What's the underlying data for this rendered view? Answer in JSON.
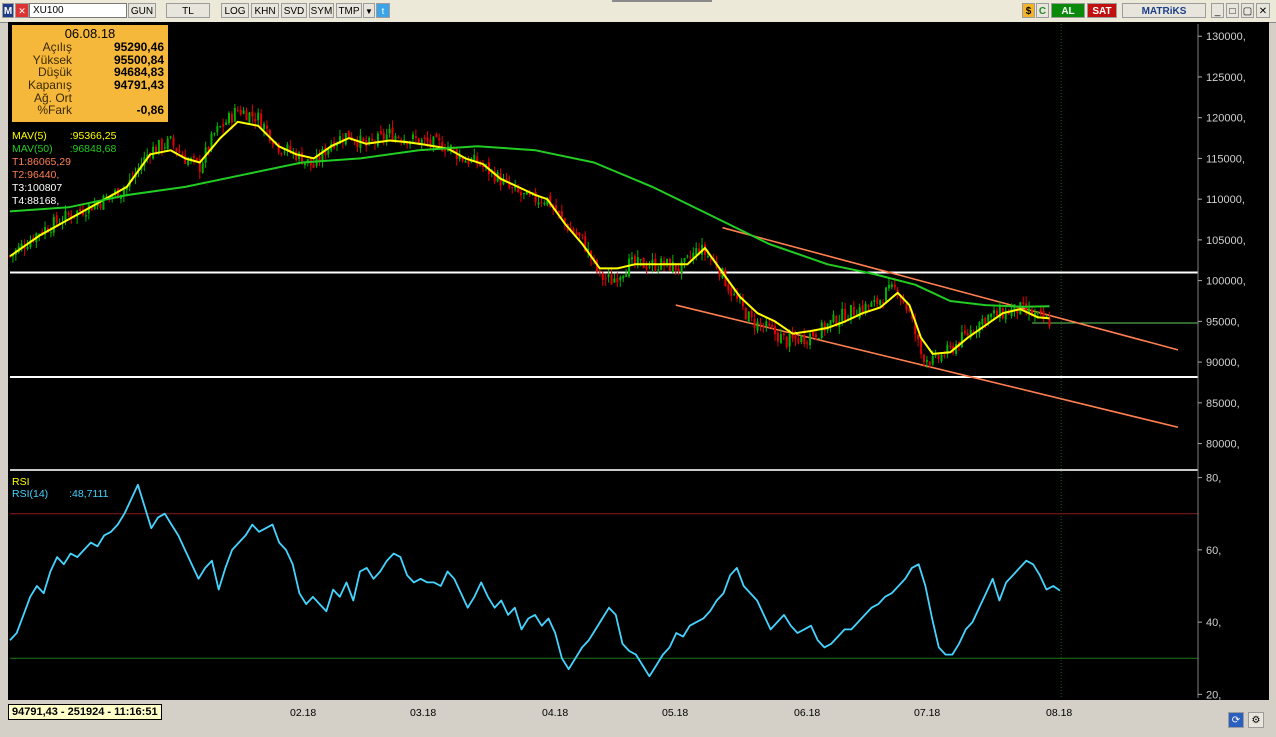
{
  "toolbar": {
    "symbol": "XU100",
    "buttons": [
      "GUN",
      "TL",
      "LOG",
      "KHN",
      "SVD",
      "SYM",
      "TMP"
    ],
    "al_label": "AL",
    "sat_label": "SAT",
    "brand": "MATRiKS"
  },
  "info_box": {
    "date": "06.08.18",
    "rows": [
      {
        "label": "Açılış",
        "value": "95290,46"
      },
      {
        "label": "Yüksek",
        "value": "95500,84"
      },
      {
        "label": "Düşük",
        "value": "94684,83"
      },
      {
        "label": "Kapanış",
        "value": "94791,43"
      },
      {
        "label": "Ağ. Ort",
        "value": ""
      },
      {
        "label": "%Fark",
        "value": "-0,86"
      }
    ]
  },
  "legend": {
    "mav5": "MAV(5)",
    "mav5_value": ":95366,25",
    "mav50": "MAV(50)",
    "mav50_value": ":96848,68",
    "t1": "T1:86065,29",
    "t2": "T2:96440,",
    "t3": "T3:100807",
    "t4": "T4:88168,"
  },
  "rsi_legend": {
    "title": "RSI",
    "label": "RSI(14)",
    "value": ":48,7111"
  },
  "status": {
    "text": "94791,43 - 251924 - 11:16:51"
  },
  "colors": {
    "up": "#00b300",
    "down": "#e00000",
    "mav5": "#ffff00",
    "mav50": "#22cc22",
    "rsi": "#44d4ff",
    "channel": "#ff7f50",
    "hline": "#ffffff",
    "infobox": "#f6b83a"
  },
  "chart_data": [
    {
      "type": "line",
      "title": "XU100",
      "x_labels": [
        "02.18",
        "03.18",
        "04.18",
        "05.18",
        "06.18",
        "07.18",
        "08.18"
      ],
      "y_ticks": [
        80000,
        85000,
        90000,
        95000,
        100000,
        105000,
        110000,
        115000,
        120000,
        125000,
        130000
      ],
      "y_tick_labels": [
        "80000,",
        "85000,",
        "90000,",
        "95000,",
        "100000,",
        "105000,",
        "110000,",
        "115000,",
        "120000,",
        "125000,",
        "130000,"
      ],
      "ylim": [
        77000,
        131500
      ],
      "price_path": [
        [
          0,
          103000
        ],
        [
          10,
          106000
        ],
        [
          20,
          108000
        ],
        [
          30,
          109500
        ],
        [
          40,
          111500
        ],
        [
          48,
          116000
        ],
        [
          55,
          117000
        ],
        [
          60,
          115000
        ],
        [
          65,
          114000
        ],
        [
          70,
          118000
        ],
        [
          78,
          121000
        ],
        [
          85,
          120000
        ],
        [
          92,
          116500
        ],
        [
          98,
          115500
        ],
        [
          104,
          114000
        ],
        [
          110,
          117000
        ],
        [
          116,
          118000
        ],
        [
          122,
          116500
        ],
        [
          130,
          118000
        ],
        [
          136,
          117500
        ],
        [
          142,
          117000
        ],
        [
          150,
          116500
        ],
        [
          155,
          115000
        ],
        [
          160,
          114500
        ],
        [
          166,
          113000
        ],
        [
          172,
          111000
        ],
        [
          178,
          110000
        ],
        [
          184,
          110000
        ],
        [
          190,
          107000
        ],
        [
          196,
          105000
        ],
        [
          202,
          100500
        ],
        [
          206,
          100000
        ],
        [
          212,
          102000
        ],
        [
          218,
          102000
        ],
        [
          224,
          102000
        ],
        [
          230,
          101500
        ],
        [
          236,
          104000
        ],
        [
          242,
          102000
        ],
        [
          248,
          98000
        ],
        [
          254,
          95000
        ],
        [
          260,
          94000
        ],
        [
          266,
          92500
        ],
        [
          272,
          93000
        ],
        [
          278,
          94000
        ],
        [
          284,
          95500
        ],
        [
          290,
          96500
        ],
        [
          296,
          97000
        ],
        [
          300,
          98500
        ],
        [
          304,
          99000
        ],
        [
          308,
          96000
        ],
        [
          312,
          91000
        ],
        [
          316,
          90000
        ],
        [
          322,
          91500
        ],
        [
          328,
          93500
        ],
        [
          334,
          95500
        ],
        [
          340,
          96000
        ],
        [
          346,
          96500
        ],
        [
          352,
          95500
        ],
        [
          356,
          95000
        ]
      ],
      "series": [
        {
          "name": "MAV(5)",
          "values": [
            [
              0,
              103000
            ],
            [
              10,
              105500
            ],
            [
              20,
              107500
            ],
            [
              30,
              109500
            ],
            [
              40,
              111500
            ],
            [
              48,
              115500
            ],
            [
              55,
              116000
            ],
            [
              60,
              115000
            ],
            [
              65,
              114500
            ],
            [
              72,
              117500
            ],
            [
              78,
              119500
            ],
            [
              85,
              119000
            ],
            [
              92,
              116500
            ],
            [
              98,
              115500
            ],
            [
              104,
              115000
            ],
            [
              110,
              116500
            ],
            [
              116,
              117500
            ],
            [
              122,
              116800
            ],
            [
              130,
              117200
            ],
            [
              136,
              117000
            ],
            [
              142,
              116700
            ],
            [
              150,
              116200
            ],
            [
              156,
              115000
            ],
            [
              162,
              114300
            ],
            [
              168,
              112500
            ],
            [
              174,
              111500
            ],
            [
              180,
              110500
            ],
            [
              184,
              110000
            ],
            [
              190,
              107000
            ],
            [
              196,
              104500
            ],
            [
              202,
              101500
            ],
            [
              208,
              101500
            ],
            [
              214,
              102000
            ],
            [
              220,
              102000
            ],
            [
              226,
              102000
            ],
            [
              232,
              102000
            ],
            [
              238,
              104000
            ],
            [
              244,
              101000
            ],
            [
              250,
              98000
            ],
            [
              256,
              96000
            ],
            [
              262,
              95000
            ],
            [
              268,
              93500
            ],
            [
              274,
              93800
            ],
            [
              280,
              94200
            ],
            [
              286,
              95000
            ],
            [
              292,
              96000
            ],
            [
              298,
              96700
            ],
            [
              304,
              98500
            ],
            [
              308,
              97000
            ],
            [
              312,
              93000
            ],
            [
              316,
              91000
            ],
            [
              322,
              91200
            ],
            [
              328,
              93000
            ],
            [
              334,
              94500
            ],
            [
              340,
              96000
            ],
            [
              346,
              96500
            ],
            [
              352,
              95500
            ],
            [
              356,
              95366
            ]
          ]
        },
        {
          "name": "MAV(50)",
          "values": [
            [
              0,
              108500
            ],
            [
              20,
              109000
            ],
            [
              40,
              110500
            ],
            [
              60,
              111500
            ],
            [
              80,
              113000
            ],
            [
              100,
              114500
            ],
            [
              120,
              115000
            ],
            [
              140,
              116000
            ],
            [
              160,
              116500
            ],
            [
              180,
              116000
            ],
            [
              200,
              114500
            ],
            [
              220,
              111500
            ],
            [
              240,
              108000
            ],
            [
              260,
              104500
            ],
            [
              280,
              102000
            ],
            [
              296,
              100800
            ],
            [
              310,
              99500
            ],
            [
              322,
              97500
            ],
            [
              334,
              97000
            ],
            [
              346,
              96800
            ],
            [
              356,
              96848
            ]
          ]
        }
      ],
      "horizontal_lines": [
        101000,
        88168
      ],
      "last_close_line": 94791.43,
      "channel_lines": [
        {
          "from": [
            244,
            106500
          ],
          "to": [
            400,
            91500
          ]
        },
        {
          "from": [
            228,
            97000
          ],
          "to": [
            400,
            82000
          ]
        }
      ]
    },
    {
      "type": "line",
      "title": "RSI",
      "series_name": "RSI(14)",
      "y_ticks": [
        20,
        40,
        60,
        80
      ],
      "y_tick_labels": [
        "20,",
        "40,",
        "60,",
        "80,"
      ],
      "ylim": [
        19,
        81
      ],
      "ref_lines": [
        70,
        30
      ],
      "values": [
        35,
        37,
        42,
        47,
        50,
        48,
        54,
        58,
        56,
        59,
        58,
        60,
        62,
        61,
        64,
        65,
        67,
        70,
        74,
        78,
        72,
        66,
        69,
        70,
        67,
        64,
        60,
        56,
        52,
        55,
        57,
        49,
        55,
        60,
        62,
        64,
        67,
        65,
        66,
        67,
        62,
        60,
        56,
        48,
        45,
        47,
        45,
        43,
        49,
        47,
        51,
        46,
        54,
        55,
        52,
        54,
        57,
        59,
        58,
        53,
        51,
        52,
        51,
        51,
        50,
        54,
        52,
        48,
        44,
        47,
        51,
        47,
        44,
        46,
        42,
        44,
        38,
        41,
        42,
        39,
        41,
        37,
        30,
        27,
        30,
        33,
        35,
        38,
        41,
        44,
        42,
        34,
        32,
        31,
        28,
        25,
        28,
        31,
        33,
        37,
        36,
        39,
        40,
        41,
        43,
        46,
        48,
        53,
        55,
        50,
        48,
        46,
        42,
        38,
        40,
        42,
        39,
        37,
        38,
        39,
        35,
        33,
        34,
        36,
        38,
        38,
        40,
        42,
        44,
        45,
        47,
        48,
        50,
        52,
        55,
        56,
        50,
        41,
        33,
        31,
        31,
        34,
        38,
        40,
        44,
        48,
        52,
        46,
        51,
        53,
        55,
        57,
        56,
        53,
        49,
        50,
        48.7
      ]
    }
  ]
}
